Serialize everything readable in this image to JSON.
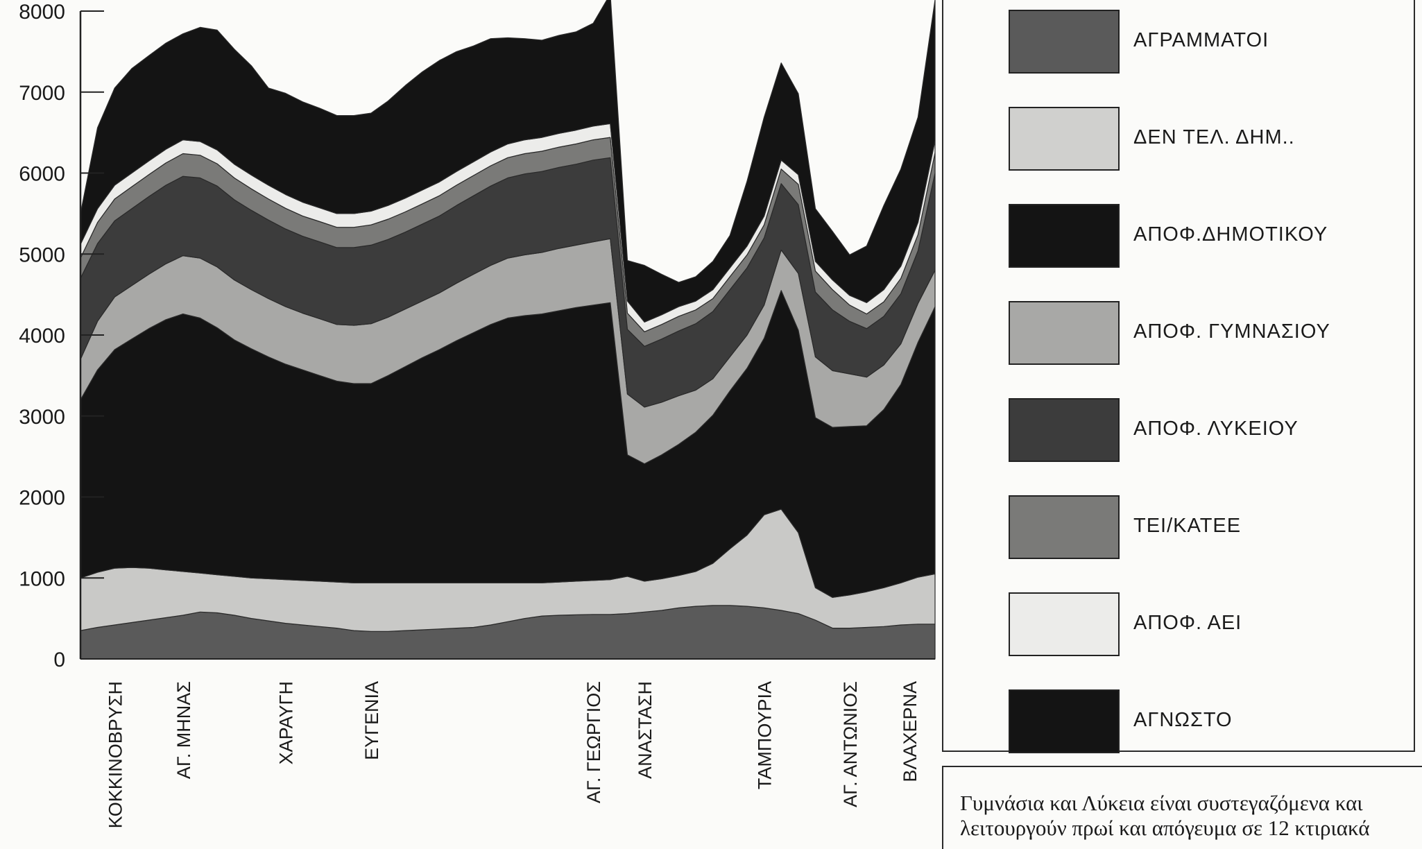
{
  "chart_data": {
    "type": "area",
    "stacked": true,
    "title": "",
    "xlabel": "",
    "ylabel": "",
    "ylim": [
      0,
      8000
    ],
    "yticks": [
      0,
      1000,
      2000,
      3000,
      4000,
      5000,
      6000,
      7000,
      8000
    ],
    "x_labeled_ticks": [
      {
        "x": 2,
        "label": "ΚΟΚΚΙΝΟΒΡΥΣΗ"
      },
      {
        "x": 6,
        "label": "ΑΓ. ΜΗΝΑΣ"
      },
      {
        "x": 12,
        "label": "ΧΑΡΑΥΓΗ"
      },
      {
        "x": 17,
        "label": "ΕΥΓΕΝΙΑ"
      },
      {
        "x": 30,
        "label": "ΑΓ. ΓΕΩΡΓΙΟΣ"
      },
      {
        "x": 33,
        "label": "ΑΝΑΣΤΑΣΗ"
      },
      {
        "x": 40,
        "label": "ΤΑΜΠΟΥΡΙΑ"
      },
      {
        "x": 45,
        "label": "ΑΓ. ΑΝΤΩΝΙΟΣ"
      },
      {
        "x": 48.5,
        "label": "ΒΛΑΧΕΡΝΑ"
      }
    ],
    "x": [
      0,
      1,
      2,
      3,
      4,
      5,
      6,
      7,
      8,
      9,
      10,
      11,
      12,
      13,
      14,
      15,
      16,
      17,
      18,
      19,
      20,
      21,
      22,
      23,
      24,
      25,
      26,
      27,
      28,
      29,
      30,
      31,
      32,
      33,
      34,
      35,
      36,
      37,
      38,
      39,
      40,
      41,
      42,
      43,
      44,
      45,
      46,
      47,
      48,
      49,
      50
    ],
    "series": [
      {
        "name": "ΑΓΡΑΜΜΑΤΟΙ",
        "color": "#5a5a5a",
        "values": [
          350,
          390,
          420,
          450,
          480,
          510,
          540,
          580,
          570,
          540,
          500,
          470,
          440,
          420,
          400,
          380,
          350,
          340,
          340,
          350,
          360,
          370,
          380,
          390,
          420,
          460,
          500,
          530,
          540,
          545,
          550,
          550,
          560,
          580,
          600,
          630,
          650,
          660,
          660,
          650,
          630,
          600,
          560,
          480,
          380,
          380,
          390,
          400,
          420,
          430,
          430
        ]
      },
      {
        "name": "ΔΕΝ ΤΕΛ. ΔΗΜ..",
        "color": "#c9c9c7",
        "values": [
          650,
          680,
          700,
          680,
          640,
          590,
          540,
          480,
          470,
          480,
          500,
          520,
          540,
          550,
          560,
          570,
          590,
          600,
          600,
          590,
          580,
          570,
          560,
          550,
          520,
          480,
          440,
          410,
          410,
          415,
          420,
          430,
          460,
          380,
          390,
          400,
          430,
          520,
          700,
          880,
          1150,
          1250,
          1000,
          400,
          380,
          410,
          440,
          480,
          520,
          580,
          620
        ]
      },
      {
        "name": "ΑΠΟΦ.ΔΗΜΟΤΙΚΟΥ",
        "color": "#141414",
        "values": [
          2200,
          2500,
          2700,
          2820,
          2960,
          3090,
          3180,
          3150,
          3050,
          2920,
          2830,
          2740,
          2660,
          2600,
          2540,
          2480,
          2460,
          2460,
          2560,
          2670,
          2780,
          2880,
          2990,
          3090,
          3190,
          3270,
          3300,
          3320,
          3350,
          3380,
          3400,
          3420,
          1500,
          1450,
          1530,
          1620,
          1720,
          1830,
          1950,
          2060,
          2180,
          2700,
          2500,
          2100,
          2100,
          2080,
          2050,
          2200,
          2450,
          2900,
          3300
        ]
      },
      {
        "name": "ΑΠΟΦ. ΓΥΜΝΑΣΙΟΥ",
        "color": "#a8a8a6",
        "values": [
          500,
          600,
          650,
          660,
          670,
          690,
          720,
          740,
          750,
          740,
          730,
          720,
          710,
          700,
          700,
          700,
          720,
          740,
          720,
          710,
          700,
          700,
          710,
          720,
          730,
          740,
          750,
          760,
          770,
          770,
          780,
          790,
          750,
          700,
          650,
          600,
          520,
          450,
          420,
          410,
          410,
          500,
          700,
          750,
          700,
          650,
          600,
          550,
          500,
          480,
          450
        ]
      },
      {
        "name": "ΑΠΟΦ. ΛΥΚΕΙΟΥ",
        "color": "#3c3c3c",
        "values": [
          1000,
          960,
          940,
          950,
          960,
          970,
          980,
          990,
          1000,
          990,
          980,
          970,
          960,
          950,
          950,
          950,
          960,
          970,
          960,
          950,
          950,
          950,
          960,
          970,
          980,
          990,
          1000,
          1000,
          1000,
          1000,
          1010,
          1000,
          800,
          750,
          780,
          800,
          820,
          830,
          830,
          830,
          830,
          820,
          850,
          800,
          750,
          650,
          600,
          600,
          620,
          650,
          1200
        ]
      },
      {
        "name": "ΤΕΙ/ΚΑΤΕΕ",
        "color": "#7a7a78",
        "values": [
          250,
          260,
          270,
          270,
          270,
          275,
          280,
          280,
          275,
          270,
          265,
          260,
          255,
          250,
          250,
          250,
          250,
          250,
          250,
          250,
          250,
          250,
          250,
          250,
          250,
          250,
          250,
          250,
          250,
          250,
          250,
          250,
          200,
          180,
          180,
          180,
          170,
          160,
          160,
          160,
          160,
          180,
          250,
          260,
          250,
          200,
          180,
          180,
          190,
          200,
          250
        ]
      },
      {
        "name": "ΑΠΟΦ. ΑΕΙ",
        "color": "#ececea",
        "values": [
          170,
          170,
          170,
          170,
          170,
          170,
          170,
          170,
          170,
          170,
          170,
          170,
          170,
          170,
          170,
          170,
          170,
          170,
          170,
          170,
          170,
          170,
          170,
          170,
          170,
          170,
          170,
          170,
          170,
          170,
          170,
          170,
          150,
          120,
          120,
          120,
          110,
          110,
          110,
          110,
          110,
          110,
          120,
          120,
          120,
          120,
          140,
          150,
          150,
          150,
          150
        ]
      },
      {
        "name": "ΑΓΝΩΣΤΟ",
        "color": "#141414",
        "values": [
          380,
          1000,
          1200,
          1290,
          1300,
          1310,
          1310,
          1410,
          1480,
          1420,
          1350,
          1200,
          1250,
          1240,
          1230,
          1210,
          1210,
          1210,
          1290,
          1390,
          1460,
          1500,
          1480,
          1430,
          1400,
          1310,
          1250,
          1200,
          1210,
          1215,
          1270,
          1600,
          500,
          700,
          500,
          300,
          300,
          350,
          400,
          800,
          1220,
          1200,
          1000,
          650,
          600,
          500,
          700,
          1040,
          1200,
          1300,
          1740
        ]
      }
    ]
  },
  "legend": {
    "items": [
      {
        "label": "ΑΓΡΑΜΜΑΤΟΙ",
        "color": "#5a5a5a"
      },
      {
        "label": "ΔΕΝ ΤΕΛ. ΔΗΜ..",
        "color": "#d0d0ce"
      },
      {
        "label": "ΑΠΟΦ.ΔΗΜΟΤΙΚΟΥ",
        "color": "#141414"
      },
      {
        "label": "ΑΠΟΦ. ΓΥΜΝΑΣΙΟΥ",
        "color": "#a8a8a6"
      },
      {
        "label": "ΑΠΟΦ. ΛΥΚΕΙΟΥ",
        "color": "#3c3c3c"
      },
      {
        "label": "ΤΕΙ/ΚΑΤΕΕ",
        "color": "#7a7a78"
      },
      {
        "label": "ΑΠΟΦ. ΑΕΙ",
        "color": "#ececea"
      },
      {
        "label": "ΑΓΝΩΣΤΟ",
        "color": "#141414"
      }
    ]
  },
  "note": {
    "text": "Γυμνάσια και Λύκεια είναι συστεγαζόμενα και λειτουργούν πρωί και απόγευμα σε 12 κτιριακά"
  }
}
